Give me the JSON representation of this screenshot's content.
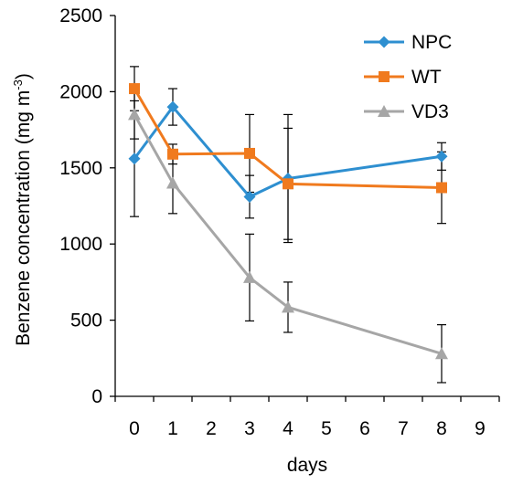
{
  "chart_data": {
    "type": "line",
    "title": "",
    "xlabel": "days",
    "ylabel": "Benzene concentration (mg m",
    "ylabel_sup": "-3",
    "ylabel_close": ")",
    "xlim": [
      -1,
      9
    ],
    "ylim": [
      0,
      2500
    ],
    "xticks": [
      0,
      1,
      2,
      3,
      4,
      5,
      6,
      7,
      8,
      9
    ],
    "yticks": [
      0,
      500,
      1000,
      1500,
      2000,
      2500
    ],
    "grid": false,
    "legend_position": "top-right",
    "x": [
      0,
      1,
      3,
      4,
      8
    ],
    "series": [
      {
        "name": "NPC",
        "color": "#2e8fd0",
        "marker": "diamond",
        "values": [
          1560,
          1900,
          1310,
          1430,
          1575
        ],
        "errors": [
          380,
          120,
          140,
          420,
          90
        ]
      },
      {
        "name": "WT",
        "color": "#f07a1e",
        "marker": "square",
        "values": [
          2020,
          1590,
          1595,
          1395,
          1370
        ],
        "errors": [
          145,
          65,
          255,
          365,
          235
        ]
      },
      {
        "name": "VD3",
        "color": "#a6a6a6",
        "marker": "triangle",
        "values": [
          1850,
          1400,
          780,
          585,
          280
        ],
        "errors": [
          160,
          200,
          285,
          165,
          190
        ]
      }
    ]
  }
}
